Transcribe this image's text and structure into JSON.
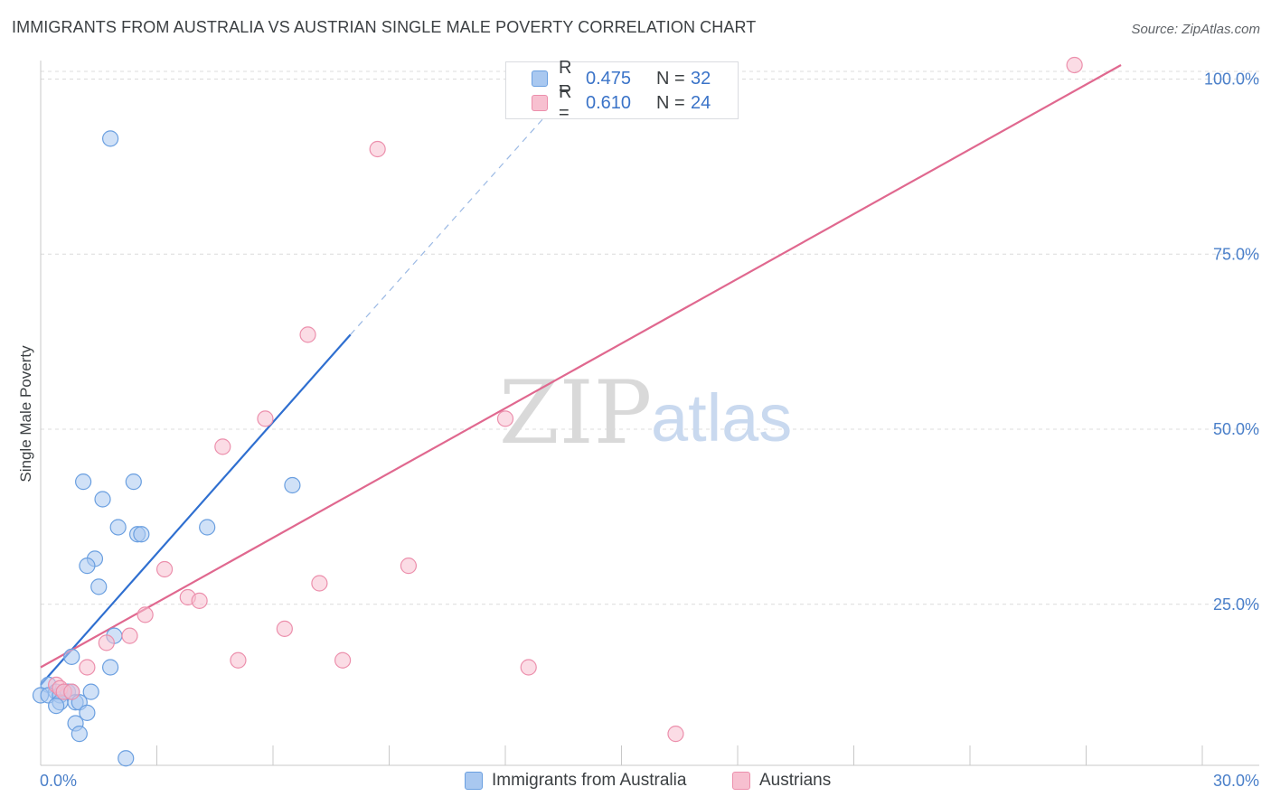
{
  "title": "IMMIGRANTS FROM AUSTRALIA VS AUSTRIAN SINGLE MALE POVERTY CORRELATION CHART",
  "source": "Source: ZipAtlas.com",
  "watermark": {
    "zip": "ZIP",
    "atlas": "atlas"
  },
  "legend": {
    "r_label": "R =",
    "n_label": "N =",
    "items": [
      {
        "r": "0.475",
        "n": "32",
        "color": "#a9c8f0",
        "stroke": "#6a9fe0"
      },
      {
        "r": "0.610",
        "n": "24",
        "color": "#f7c0d0",
        "stroke": "#ec8fac"
      }
    ]
  },
  "bottom_legend": [
    "Immigrants from Australia",
    "Austrians"
  ],
  "chart_data": {
    "type": "scatter",
    "title": "IMMIGRANTS FROM AUSTRALIA VS AUSTRIAN SINGLE MALE POVERTY CORRELATION CHART",
    "xlabel": "",
    "ylabel": "Single Male Poverty",
    "xlim": [
      0,
      30
    ],
    "ylim": [
      2,
      102
    ],
    "x_tick_labels": [
      "0.0%",
      "30.0%"
    ],
    "y_ticks": [
      25,
      50,
      75,
      100
    ],
    "y_tick_labels": [
      "25.0%",
      "50.0%",
      "75.0%",
      "100.0%"
    ],
    "grid": true,
    "series": [
      {
        "name": "Immigrants from Australia",
        "color": "#6a9fe0",
        "fill": "#a9c8f0",
        "line_color": "#2f6fd0",
        "trend": {
          "x0": 0.0,
          "y0": 13.5,
          "x1": 8.0,
          "y1": 63.5,
          "dash_x1": 13.0,
          "dash_y1": 94.5
        },
        "points": [
          [
            1.8,
            91.5
          ],
          [
            1.1,
            42.5
          ],
          [
            2.4,
            42.5
          ],
          [
            6.5,
            42.0
          ],
          [
            1.6,
            40.0
          ],
          [
            2.0,
            36.0
          ],
          [
            2.5,
            35.0
          ],
          [
            2.6,
            35.0
          ],
          [
            4.3,
            36.0
          ],
          [
            1.4,
            31.5
          ],
          [
            1.2,
            30.5
          ],
          [
            1.5,
            27.5
          ],
          [
            1.9,
            20.5
          ],
          [
            0.8,
            17.5
          ],
          [
            1.8,
            16.0
          ],
          [
            0.2,
            13.5
          ],
          [
            0.4,
            12.5
          ],
          [
            0.6,
            12.5
          ],
          [
            0.0,
            12.0
          ],
          [
            0.2,
            12.0
          ],
          [
            0.5,
            12.0
          ],
          [
            0.7,
            12.5
          ],
          [
            0.8,
            12.5
          ],
          [
            1.3,
            12.5
          ],
          [
            0.5,
            11.0
          ],
          [
            0.9,
            11.0
          ],
          [
            1.0,
            11.0
          ],
          [
            0.4,
            10.5
          ],
          [
            1.2,
            9.5
          ],
          [
            0.9,
            8.0
          ],
          [
            1.0,
            6.5
          ],
          [
            2.2,
            3.0
          ]
        ]
      },
      {
        "name": "Austrians",
        "color": "#ec8fac",
        "fill": "#f7c0d0",
        "line_color": "#e0688f",
        "trend": {
          "x0": 0.0,
          "y0": 16.0,
          "x1": 27.9,
          "y1": 102.0
        },
        "points": [
          [
            26.7,
            102.0
          ],
          [
            8.7,
            90.0
          ],
          [
            6.9,
            63.5
          ],
          [
            5.8,
            51.5
          ],
          [
            12.0,
            51.5
          ],
          [
            4.7,
            47.5
          ],
          [
            3.2,
            30.0
          ],
          [
            9.5,
            30.5
          ],
          [
            7.2,
            28.0
          ],
          [
            3.8,
            26.0
          ],
          [
            4.1,
            25.5
          ],
          [
            2.7,
            23.5
          ],
          [
            6.3,
            21.5
          ],
          [
            2.3,
            20.5
          ],
          [
            1.7,
            19.5
          ],
          [
            5.1,
            17.0
          ],
          [
            7.8,
            17.0
          ],
          [
            1.2,
            16.0
          ],
          [
            12.6,
            16.0
          ],
          [
            0.4,
            13.5
          ],
          [
            0.5,
            13.0
          ],
          [
            0.6,
            12.5
          ],
          [
            0.8,
            12.5
          ],
          [
            16.4,
            6.5
          ]
        ]
      }
    ]
  }
}
